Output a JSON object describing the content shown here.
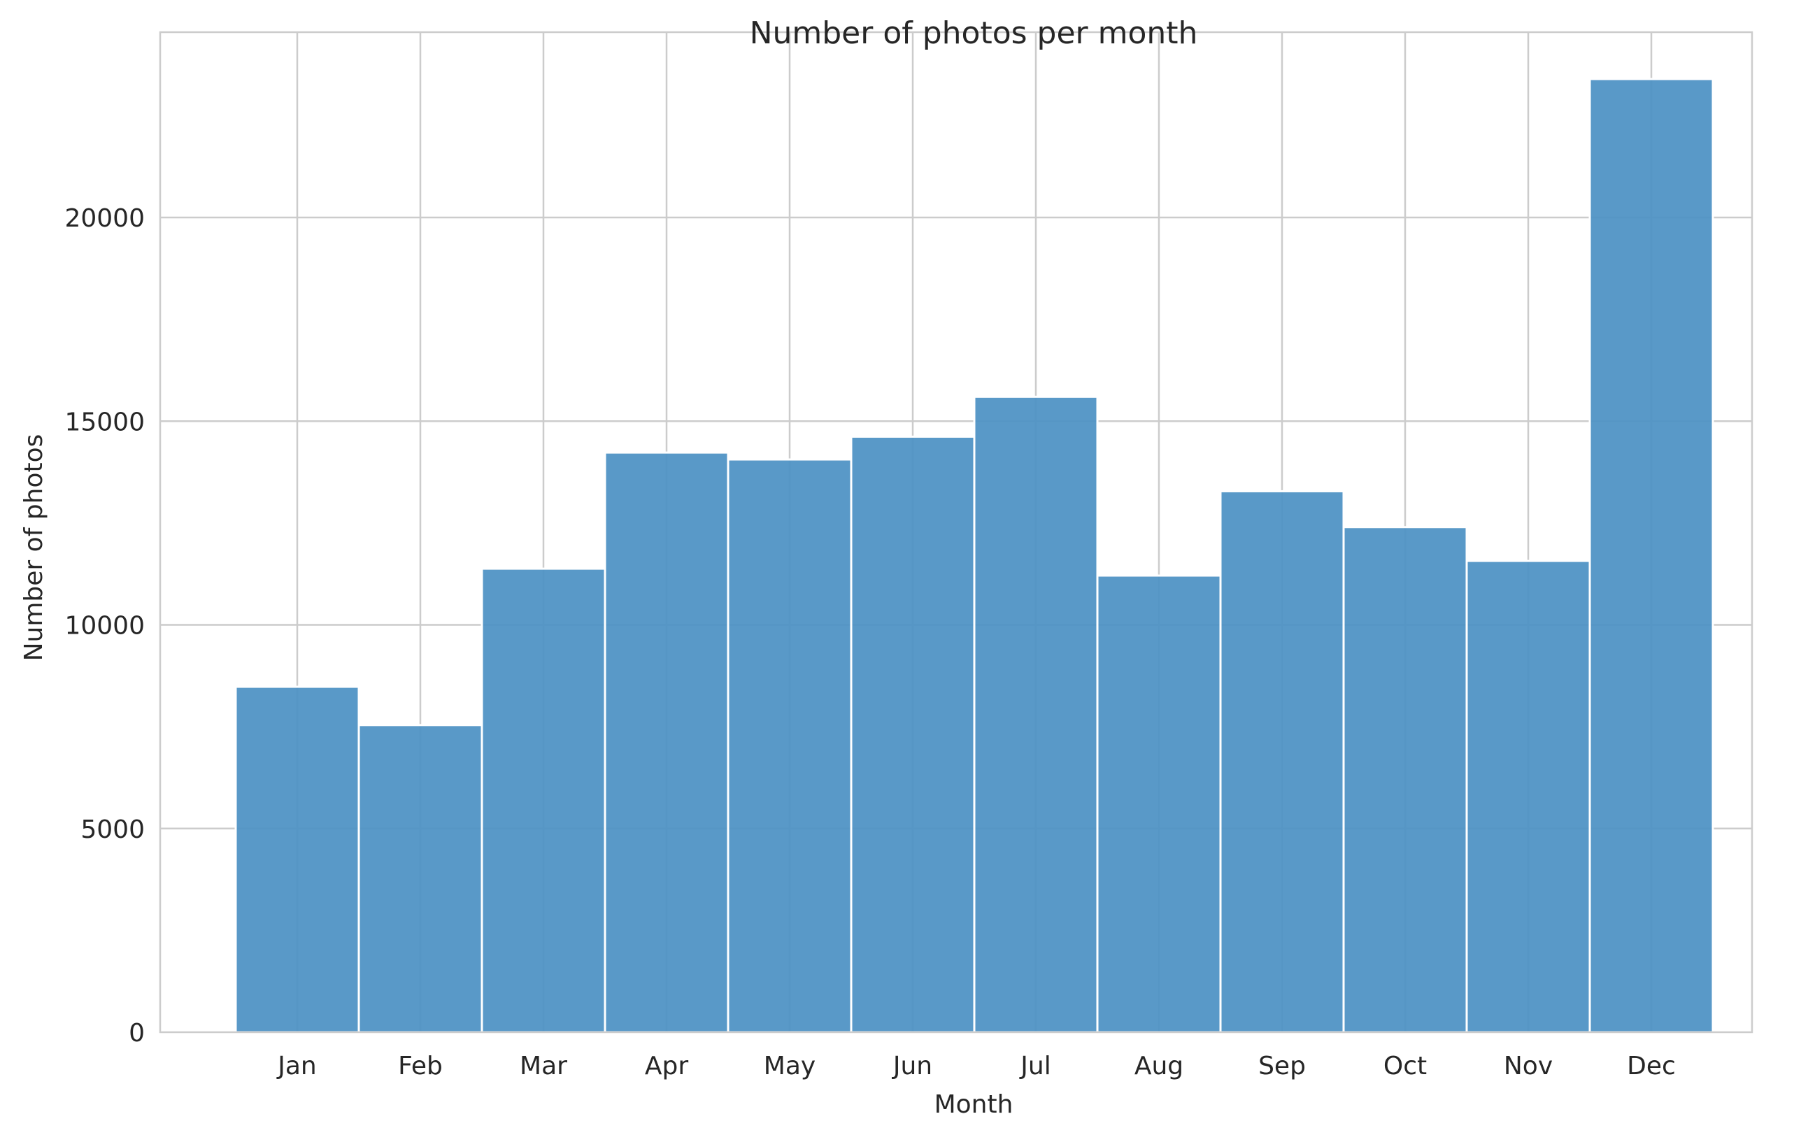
{
  "chart_data": {
    "type": "bar",
    "title": "Number of photos per month",
    "xlabel": "Month",
    "ylabel": "Number of photos",
    "categories": [
      "Jan",
      "Feb",
      "Mar",
      "Apr",
      "May",
      "Jun",
      "Jul",
      "Aug",
      "Sep",
      "Oct",
      "Nov",
      "Dec"
    ],
    "values": [
      8480,
      7540,
      11380,
      14230,
      14060,
      14620,
      15600,
      11210,
      13280,
      12400,
      11570,
      23400
    ],
    "ylim": [
      0,
      24550
    ],
    "yticks": [
      0,
      5000,
      10000,
      15000,
      20000
    ],
    "ytick_labels": [
      "0",
      "5000",
      "10000",
      "15000",
      "20000"
    ],
    "grid": true,
    "legend": "none",
    "colors": {
      "bar": "#4c91c4",
      "bar_edge": "#ffffff",
      "grid": "#cccccc",
      "axes_edge": "#cccccc",
      "background": "#ffffff"
    }
  }
}
